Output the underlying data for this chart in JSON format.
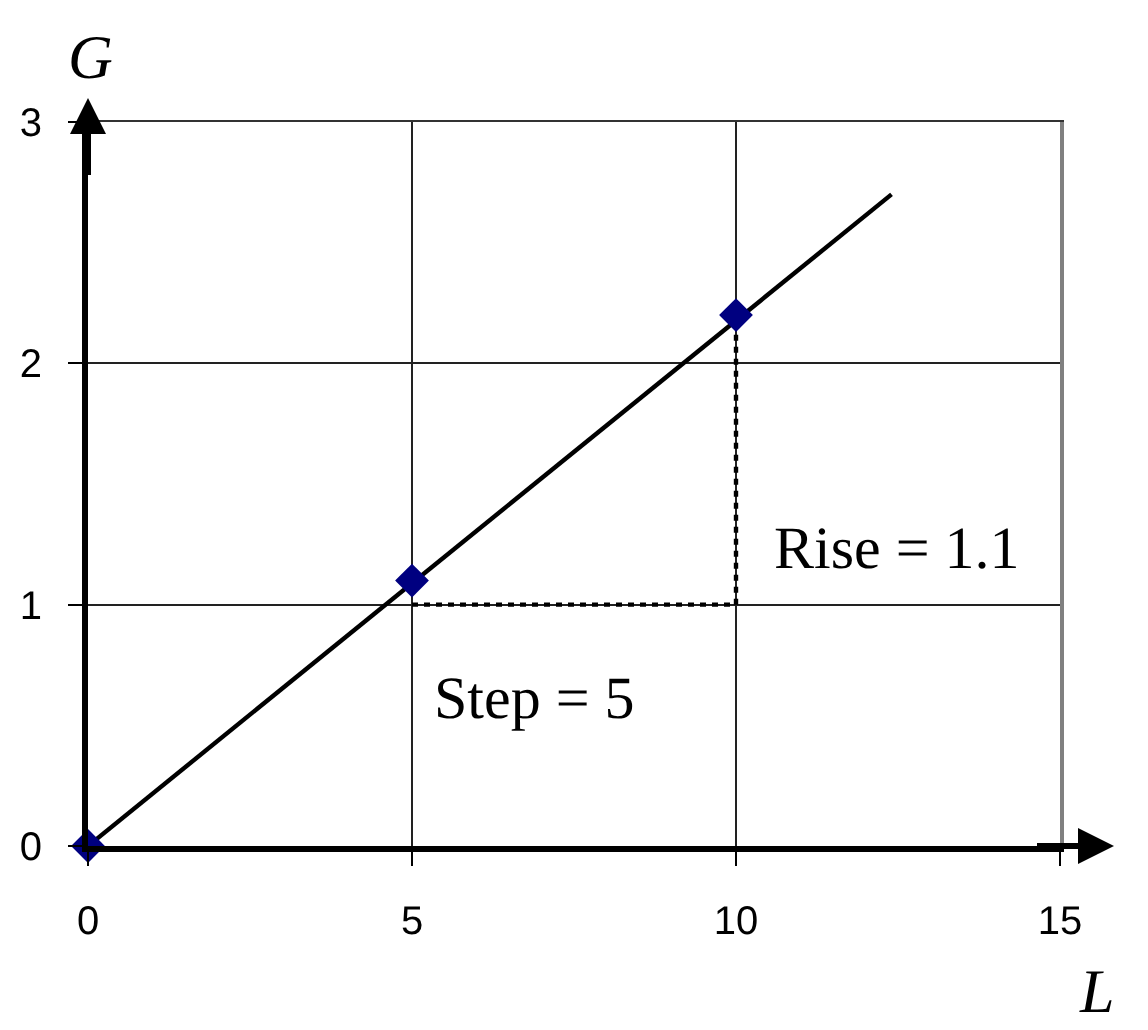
{
  "chart_data": {
    "type": "scatter",
    "xlabel": "L",
    "ylabel": "G",
    "xlim": [
      0,
      15
    ],
    "ylim": [
      0,
      3
    ],
    "xticks": [
      0,
      5,
      10,
      15
    ],
    "yticks": [
      0,
      1,
      2,
      3
    ],
    "grid": true,
    "series": [
      {
        "type": "line",
        "color": "#000000",
        "x": [
          0,
          12.4
        ],
        "values": [
          0,
          2.7
        ],
        "line_style": "solid",
        "marker": "none"
      },
      {
        "type": "line",
        "color": "#000000",
        "x": [
          5,
          10,
          10
        ],
        "values": [
          1,
          1,
          2.2
        ],
        "line_style": "dotted",
        "marker": "none"
      },
      {
        "color": "#000080",
        "x": [
          0,
          5,
          10
        ],
        "values": [
          0,
          1.1,
          2.2
        ],
        "marker": "diamond"
      }
    ],
    "annotations": [
      "Rise = 1.1",
      "Step = 5"
    ]
  }
}
